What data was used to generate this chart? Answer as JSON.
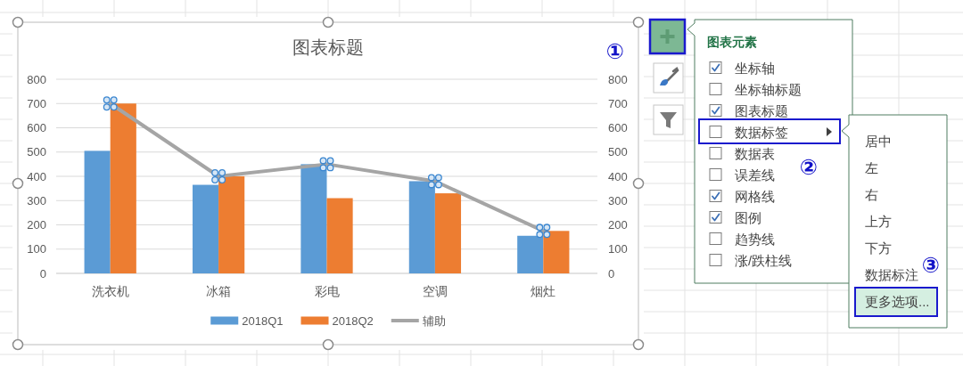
{
  "chart_data": [
    {
      "type": "bar",
      "title": "图表标题",
      "categories": [
        "洗衣机",
        "冰箱",
        "彩电",
        "空调",
        "烟灶"
      ],
      "series": [
        {
          "name": "2018Q1",
          "color": "#5b9bd5",
          "values": [
            505,
            365,
            450,
            380,
            155
          ]
        },
        {
          "name": "2018Q2",
          "color": "#ed7d31",
          "values": [
            700,
            400,
            310,
            330,
            175
          ]
        },
        {
          "name": "辅助",
          "type": "line",
          "axis": "y2",
          "color": "#a5a5a5",
          "values": [
            700,
            400,
            450,
            380,
            175
          ]
        }
      ],
      "ylim": [
        0,
        800
      ],
      "yticks": [
        0,
        100,
        200,
        300,
        400,
        500,
        600,
        700,
        800
      ],
      "y2lim": [
        0,
        800
      ],
      "y2ticks": [
        0,
        100,
        200,
        300,
        400,
        500,
        600,
        700,
        800
      ],
      "grid": "y",
      "legend": "bottom"
    },
    {
      "type": "other",
      "title": "图表元素",
      "categories": [
        "坐标轴",
        "坐标轴标题",
        "图表标题",
        "数据标签",
        "数据表",
        "误差线",
        "网格线",
        "图例",
        "趋势线",
        "涨/跌柱线"
      ],
      "annotations": [
        "①",
        "②"
      ]
    },
    {
      "type": "other",
      "categories": [
        "居中",
        "左",
        "右",
        "上方",
        "下方",
        "数据标注",
        "更多选项..."
      ],
      "annotations": [
        "③"
      ]
    }
  ]
}
